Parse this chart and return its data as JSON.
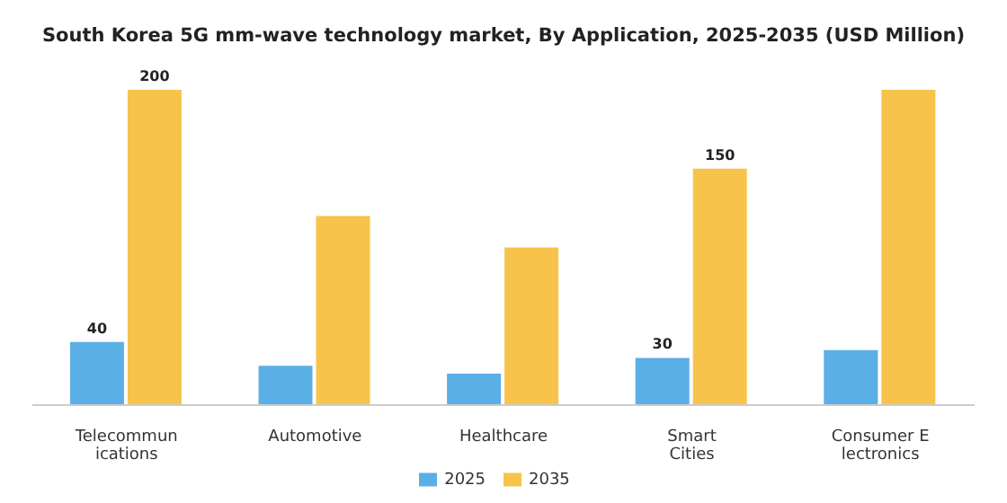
{
  "chart_data": {
    "type": "bar",
    "title": "South Korea 5G mm-wave technology market, By Application, 2025-2035 (USD Million)",
    "categories": [
      "Telecommunications",
      "Automotive",
      "Healthcare",
      "Smart Cities",
      "Consumer Electronics"
    ],
    "series": [
      {
        "name": "2025",
        "color": "#5aafe6",
        "values": [
          40,
          25,
          20,
          30,
          35
        ],
        "value_labels": [
          "40",
          null,
          null,
          "30",
          null
        ]
      },
      {
        "name": "2035",
        "color": "#f8c34a",
        "values": [
          200,
          120,
          100,
          150,
          200
        ],
        "value_labels": [
          "200",
          null,
          null,
          "150",
          null
        ]
      }
    ],
    "legend": "bottom"
  }
}
